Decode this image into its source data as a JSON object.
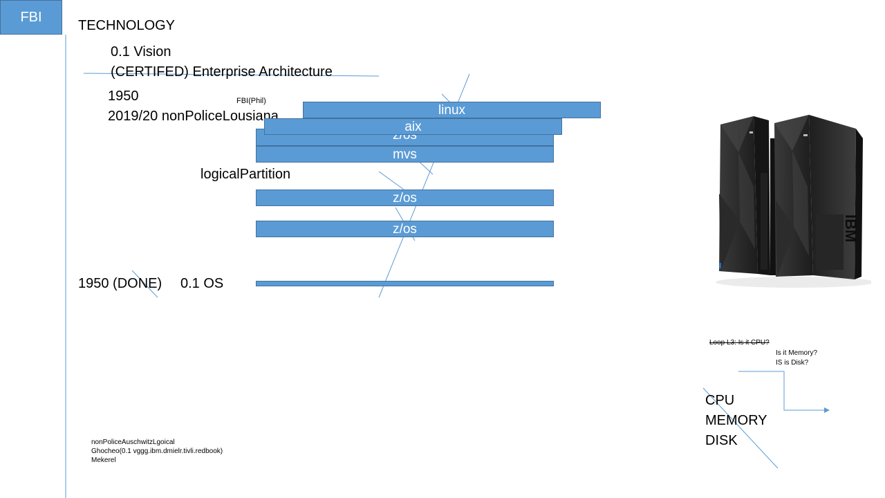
{
  "header": {
    "fbi_label": "FBI",
    "title": "TECHNOLOGY"
  },
  "vision": {
    "line1": "0.1 Vision",
    "line2": "(CERTIFED) Enterprise Architecture"
  },
  "timeline": {
    "year": "1950",
    "line2": "2019/20 nonPoliceLousiana"
  },
  "fbi_phil": "FBI(Phil)",
  "stack": {
    "linux": "linux",
    "aix": "aix",
    "zos_top": "z/os",
    "mvs": "mvs",
    "logical_partition": "logicalPartition",
    "zos_lpar1": "z/os",
    "zos_lpar2": "z/os"
  },
  "done_row": {
    "label": "1950 (DONE)",
    "os": "0.1 OS"
  },
  "notes": {
    "line1": "nonPoliceAuschwitzLgoical",
    "line2": "Ghocheo(0.1 vggg.ibm.dmielr.tivli.redbook)",
    "line3": "Mekerel"
  },
  "loop": {
    "cpu_q": "Loop L3: Is it CPU?",
    "memory_q": "Is it Memory?",
    "disk_q": "IS is Disk?"
  },
  "resources": {
    "cpu": "CPU",
    "memory": "MEMORY",
    "disk": "DISK"
  },
  "mainframe": {
    "brand": "IBM",
    "icon": "ibm-mainframe-image"
  },
  "colors": {
    "bar_fill": "#5b9bd5",
    "bar_border": "#41719c",
    "line": "#5b9bd5",
    "mainframe": "#2b2b2b"
  }
}
